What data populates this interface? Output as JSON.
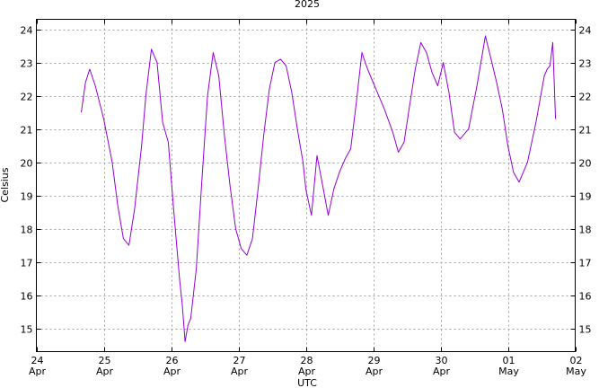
{
  "chart_data": {
    "type": "line",
    "title": "2025",
    "xlabel": "UTC",
    "ylabel": "Celsius",
    "xlim": [
      "2025-04-24T00:00",
      "2025-05-02T00:00"
    ],
    "ylim": [
      14.3,
      24.3
    ],
    "grid": true,
    "x_ticks": [
      {
        "day": "24",
        "month": "Apr"
      },
      {
        "day": "25",
        "month": "Apr"
      },
      {
        "day": "26",
        "month": "Apr"
      },
      {
        "day": "27",
        "month": "Apr"
      },
      {
        "day": "28",
        "month": "Apr"
      },
      {
        "day": "29",
        "month": "Apr"
      },
      {
        "day": "30",
        "month": "Apr"
      },
      {
        "day": "01",
        "month": "May"
      },
      {
        "day": "02",
        "month": "May"
      }
    ],
    "y_ticks": [
      "15",
      "16",
      "17",
      "18",
      "19",
      "20",
      "21",
      "22",
      "23",
      "24"
    ],
    "series": [
      {
        "color": "#9400d3",
        "x": [
          "2025-04-24T16:00",
          "2025-04-24T17:30",
          "2025-04-24T19:00",
          "2025-04-24T21:00",
          "2025-04-25T00:00",
          "2025-04-25T03:00",
          "2025-04-25T05:00",
          "2025-04-25T07:00",
          "2025-04-25T09:00",
          "2025-04-25T11:00",
          "2025-04-25T13:30",
          "2025-04-25T15:00",
          "2025-04-25T17:00",
          "2025-04-25T19:00",
          "2025-04-25T21:00",
          "2025-04-25T23:00",
          "2025-04-26T01:00",
          "2025-04-26T03:00",
          "2025-04-26T04:00",
          "2025-04-26T05:00",
          "2025-04-26T06:00",
          "2025-04-26T07:00",
          "2025-04-26T09:00",
          "2025-04-26T11:00",
          "2025-04-26T13:00",
          "2025-04-26T15:00",
          "2025-04-26T17:00",
          "2025-04-26T19:00",
          "2025-04-26T21:00",
          "2025-04-26T23:00",
          "2025-04-27T01:00",
          "2025-04-27T03:00",
          "2025-04-27T05:00",
          "2025-04-27T07:00",
          "2025-04-27T09:00",
          "2025-04-27T11:00",
          "2025-04-27T13:00",
          "2025-04-27T15:00",
          "2025-04-27T17:00",
          "2025-04-27T19:00",
          "2025-04-27T21:00",
          "2025-04-27T23:00",
          "2025-04-28T00:00",
          "2025-04-28T02:00",
          "2025-04-28T04:00",
          "2025-04-28T06:00",
          "2025-04-28T08:00",
          "2025-04-28T10:00",
          "2025-04-28T12:00",
          "2025-04-28T14:00",
          "2025-04-28T16:00",
          "2025-04-28T18:00",
          "2025-04-28T20:00",
          "2025-04-28T22:00",
          "2025-04-29T01:00",
          "2025-04-29T04:00",
          "2025-04-29T07:00",
          "2025-04-29T09:00",
          "2025-04-29T11:00",
          "2025-04-29T13:00",
          "2025-04-29T15:00",
          "2025-04-29T17:00",
          "2025-04-29T19:00",
          "2025-04-29T21:00",
          "2025-04-29T23:00",
          "2025-04-30T01:00",
          "2025-04-30T03:00",
          "2025-04-30T05:00",
          "2025-04-30T07:00",
          "2025-04-30T10:00",
          "2025-04-30T13:00",
          "2025-04-30T16:00",
          "2025-04-30T18:00",
          "2025-04-30T20:00",
          "2025-04-30T22:00",
          "2025-05-01T00:00",
          "2025-05-01T02:00",
          "2025-05-01T04:00",
          "2025-05-01T07:00",
          "2025-05-01T10:00",
          "2025-05-01T13:00",
          "2025-05-01T14:00",
          "2025-05-01T15:00",
          "2025-05-01T16:00",
          "2025-05-01T17:00"
        ],
        "values": [
          21.5,
          22.4,
          22.8,
          22.3,
          21.3,
          20.0,
          18.7,
          17.7,
          17.5,
          18.6,
          20.5,
          22.0,
          23.4,
          23.0,
          21.2,
          20.6,
          18.5,
          16.5,
          15.7,
          14.6,
          15.1,
          15.3,
          16.8,
          19.5,
          22.0,
          23.3,
          22.6,
          20.8,
          19.3,
          18.0,
          17.4,
          17.2,
          17.7,
          19.2,
          20.8,
          22.2,
          23.0,
          23.1,
          22.9,
          22.1,
          21.0,
          20.0,
          19.2,
          18.4,
          20.2,
          19.3,
          18.4,
          19.2,
          19.7,
          20.1,
          20.4,
          21.8,
          23.3,
          22.8,
          22.2,
          21.6,
          20.9,
          20.3,
          20.6,
          21.7,
          22.8,
          23.6,
          23.3,
          22.7,
          22.3,
          23.0,
          22.1,
          20.9,
          20.7,
          21.0,
          22.3,
          23.8,
          23.1,
          22.4,
          21.6,
          20.5,
          19.7,
          19.4,
          20.0,
          21.2,
          22.6,
          22.8,
          22.9,
          23.6,
          21.3
        ]
      }
    ]
  }
}
